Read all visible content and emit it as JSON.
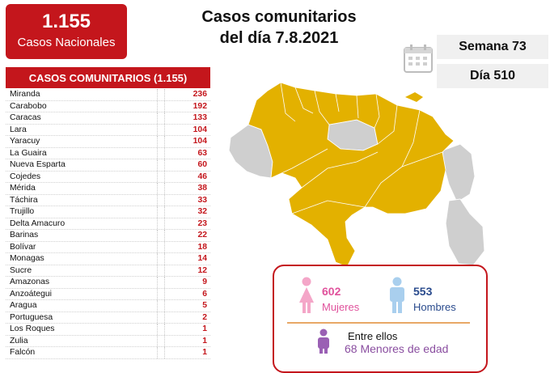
{
  "summary": {
    "total": "1.155",
    "total_label": "Casos Nacionales"
  },
  "title": {
    "line1": "Casos comunitarios",
    "line2": "del día 7.8.2021"
  },
  "semana": "Semana 73",
  "dia": "Día 510",
  "table": {
    "header": "CASOS COMUNITARIOS (1.155)",
    "rows": [
      {
        "name": "Miranda",
        "value": "236"
      },
      {
        "name": "Carabobo",
        "value": "192"
      },
      {
        "name": "Caracas",
        "value": "133"
      },
      {
        "name": "Lara",
        "value": "104"
      },
      {
        "name": "Yaracuy",
        "value": "104"
      },
      {
        "name": "La Guaira",
        "value": "63"
      },
      {
        "name": "Nueva Esparta",
        "value": "60"
      },
      {
        "name": "Cojedes",
        "value": "46"
      },
      {
        "name": "Mérida",
        "value": "38"
      },
      {
        "name": "Táchira",
        "value": "33"
      },
      {
        "name": "Trujillo",
        "value": "32"
      },
      {
        "name": "Delta Amacuro",
        "value": "23"
      },
      {
        "name": "Barinas",
        "value": "22"
      },
      {
        "name": "Bolívar",
        "value": "18"
      },
      {
        "name": "Monagas",
        "value": "14"
      },
      {
        "name": "Sucre",
        "value": "12"
      },
      {
        "name": "Amazonas",
        "value": "9"
      },
      {
        "name": "Anzoátegui",
        "value": "6"
      },
      {
        "name": "Aragua",
        "value": "5"
      },
      {
        "name": "Portuguesa",
        "value": "2"
      },
      {
        "name": "Los Roques",
        "value": "1"
      },
      {
        "name": "Zulia",
        "value": "1"
      },
      {
        "name": "Falcón",
        "value": "1"
      }
    ]
  },
  "gender": {
    "mujeres_count": "602",
    "mujeres_label": "Mujeres",
    "hombres_count": "553",
    "hombres_label": "Hombres",
    "ellos_label": "Entre ellos",
    "menores_label": "68 Menores de edad"
  },
  "colors": {
    "red": "#c4161c",
    "map_active": "#e3b100",
    "map_inactive": "#cfcfcf",
    "female": "#e0529c",
    "male": "#2a4b8d"
  }
}
